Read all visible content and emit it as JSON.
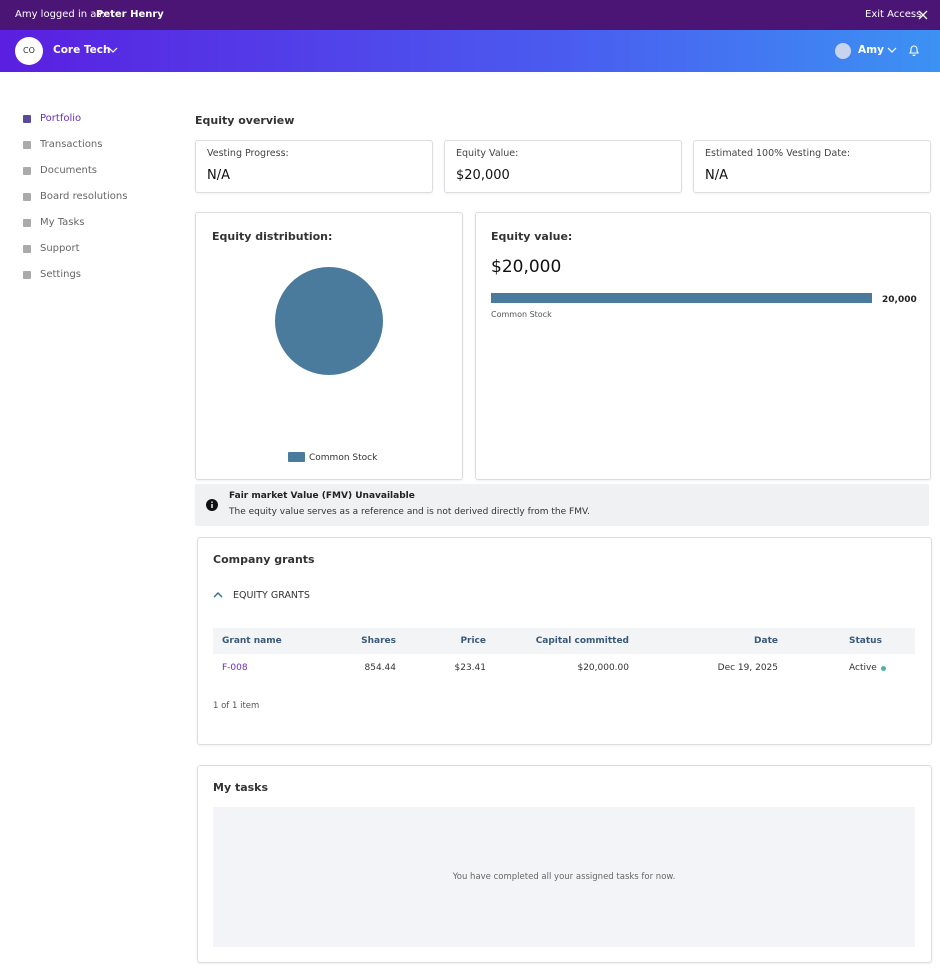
{
  "banner": {
    "prefix": "Amy logged in as:",
    "user": "Peter Henry",
    "exit": "Exit Access"
  },
  "header": {
    "avatar": "CO",
    "company": "Core Tech",
    "user": "Amy"
  },
  "sidebar": {
    "items": [
      "Portfolio",
      "Transactions",
      "Documents",
      "Board resolutions",
      "My Tasks",
      "Support",
      "Settings"
    ],
    "active": "Portfolio"
  },
  "overview": {
    "title": "Equity overview",
    "cards": [
      {
        "label": "Vesting Progress:",
        "value": "N/A"
      },
      {
        "label": "Equity Value:",
        "value": "$20,000"
      },
      {
        "label": "Estimated 100% Vesting Date:",
        "value": "N/A"
      }
    ]
  },
  "equity_distribution": {
    "type": "pie",
    "title": "Equity distribution:",
    "categories": [
      "Common Stock"
    ],
    "values": [
      100
    ],
    "colors": [
      "#4a7b9d"
    ]
  },
  "equity_value": {
    "type": "bar",
    "title": "Equity value:",
    "total": "$20,000",
    "categories": [
      "Common Stock"
    ],
    "values": [
      20000
    ],
    "value_labels": [
      "20,000"
    ],
    "xlim": [
      0,
      20000
    ],
    "color": "#4a7b9d"
  },
  "notice": {
    "title": "Fair market Value (FMV) Unavailable",
    "text": "The equity value serves as a reference and is not derived directly from the FMV."
  },
  "grants": {
    "title": "Company grants",
    "section": "EQUITY GRANTS",
    "columns": [
      "Grant name",
      "Shares",
      "Price",
      "Capital committed",
      "Date",
      "Status"
    ],
    "rows": [
      [
        "F-008",
        "854.44",
        "$23.41",
        "$20,000.00",
        "Dec 19, 2025",
        "Active"
      ]
    ],
    "pagination": "1 of 1 item"
  },
  "tasks": {
    "title": "My tasks",
    "empty": "You have completed all your assigned tasks for now."
  }
}
